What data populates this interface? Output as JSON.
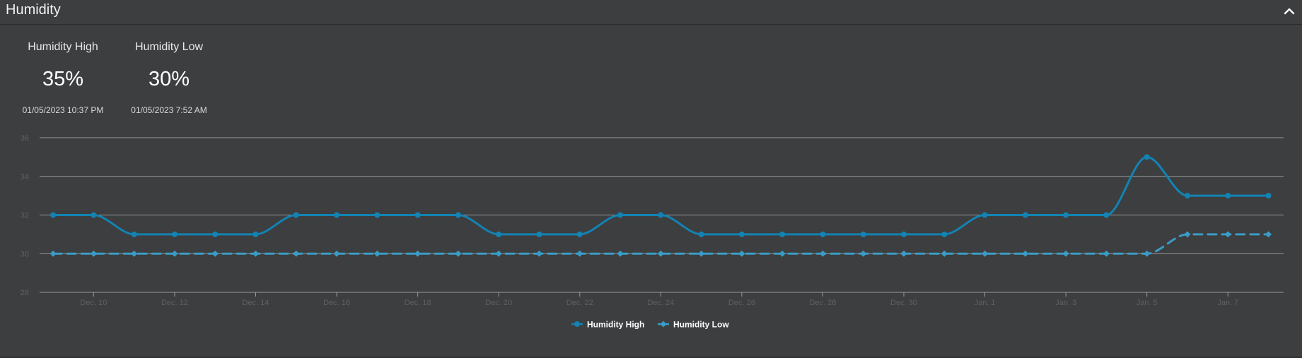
{
  "panel": {
    "title": "Humidity",
    "collapse_icon": "chevron-up-icon"
  },
  "stats": [
    {
      "label": "Humidity High",
      "value": "35%",
      "time": "01/05/2023 10:37 PM"
    },
    {
      "label": "Humidity Low",
      "value": "30%",
      "time": "01/05/2023 7:52 AM"
    }
  ],
  "colors": {
    "background": "#3d3e40",
    "grid": "#9a9a9a",
    "series_high": "#1283b3",
    "series_low": "#3a9cc6",
    "tick_text": "#5f6062",
    "legend_text": "#ffffff"
  },
  "chart_data": {
    "type": "line",
    "title": "",
    "xlabel": "",
    "ylabel": "",
    "x": [
      "2022-12-09",
      "2022-12-10",
      "2022-12-11",
      "2022-12-12",
      "2022-12-13",
      "2022-12-14",
      "2022-12-15",
      "2022-12-16",
      "2022-12-17",
      "2022-12-18",
      "2022-12-19",
      "2022-12-20",
      "2022-12-21",
      "2022-12-22",
      "2022-12-23",
      "2022-12-24",
      "2022-12-25",
      "2022-12-26",
      "2022-12-27",
      "2022-12-28",
      "2022-12-29",
      "2022-12-30",
      "2022-12-31",
      "2023-01-01",
      "2023-01-02",
      "2023-01-03",
      "2023-01-04",
      "2023-01-05",
      "2023-01-06",
      "2023-01-07",
      "2023-01-08"
    ],
    "xlim": [
      "2022-12-08T16:00",
      "2023-01-08T09:00"
    ],
    "x_ticks": [
      "Dec. 10",
      "Dec. 12",
      "Dec. 14",
      "Dec. 16",
      "Dec. 18",
      "Dec. 20",
      "Dec. 22",
      "Dec. 24",
      "Dec. 26",
      "Dec. 28",
      "Dec. 30",
      "Jan. 1",
      "Jan. 3",
      "Jan. 5",
      "Jan. 7"
    ],
    "x_tick_dates": [
      "2022-12-10",
      "2022-12-12",
      "2022-12-14",
      "2022-12-16",
      "2022-12-18",
      "2022-12-20",
      "2022-12-22",
      "2022-12-24",
      "2022-12-26",
      "2022-12-28",
      "2022-12-30",
      "2023-01-01",
      "2023-01-03",
      "2023-01-05",
      "2023-01-07"
    ],
    "y_ticks": [
      "28",
      "30",
      "32",
      "34",
      "36"
    ],
    "ylim": [
      28,
      36
    ],
    "grid": true,
    "legend_position": "bottom-center",
    "series": [
      {
        "name": "Humidity High",
        "style": "solid",
        "marker": "circle",
        "values": [
          32,
          32,
          31,
          31,
          31,
          31,
          32,
          32,
          32,
          32,
          32,
          31,
          31,
          31,
          32,
          32,
          31,
          31,
          31,
          31,
          31,
          31,
          31,
          32,
          32,
          32,
          32,
          35,
          33,
          33,
          33
        ]
      },
      {
        "name": "Humidity Low",
        "style": "dashed",
        "marker": "diamond",
        "values": [
          30,
          30,
          30,
          30,
          30,
          30,
          30,
          30,
          30,
          30,
          30,
          30,
          30,
          30,
          30,
          30,
          30,
          30,
          30,
          30,
          30,
          30,
          30,
          30,
          30,
          30,
          30,
          30,
          31,
          31,
          31
        ]
      }
    ]
  }
}
